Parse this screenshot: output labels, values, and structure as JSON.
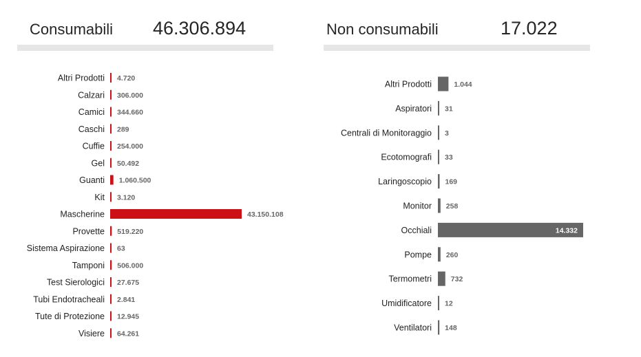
{
  "kpi_left": {
    "label": "Consumabili",
    "value": "46.306.894"
  },
  "kpi_right": {
    "label": "Non consumabili",
    "value": "17.022"
  },
  "colors": {
    "left_bar": "#cc1016",
    "right_bar": "#666666",
    "underline": "#e6e6e6"
  },
  "chart_data": [
    {
      "type": "bar",
      "orientation": "horizontal",
      "categories": [
        "Altri Prodotti",
        "Calzari",
        "Camici",
        "Caschi",
        "Cuffie",
        "Gel",
        "Guanti",
        "Kit",
        "Mascherine",
        "Provette",
        "Sistema Aspirazione",
        "Tamponi",
        "Test Sierologici",
        "Tubi Endotracheali",
        "Tute di Protezione",
        "Visiere"
      ],
      "values": [
        4720,
        306000,
        344660,
        289,
        254000,
        50492,
        1060500,
        3120,
        43150108,
        519220,
        63,
        506000,
        27675,
        2841,
        12945,
        64261
      ],
      "value_labels": [
        "4.720",
        "306.000",
        "344.660",
        "289",
        "254.000",
        "50.492",
        "1.060.500",
        "3.120",
        "43.150.108",
        "519.220",
        "63",
        "506.000",
        "27.675",
        "2.841",
        "12.945",
        "64.261"
      ],
      "color": "#cc1016",
      "xlim": [
        0,
        43150108
      ]
    },
    {
      "type": "bar",
      "orientation": "horizontal",
      "categories": [
        "Altri Prodotti",
        "Aspiratori",
        "Centrali di Monitoraggio",
        "Ecotomografi",
        "Laringoscopio",
        "Monitor",
        "Occhiali",
        "Pompe",
        "Termometri",
        "Umidificatore",
        "Ventilatori"
      ],
      "values": [
        1044,
        31,
        3,
        33,
        169,
        258,
        14332,
        260,
        732,
        12,
        148
      ],
      "value_labels": [
        "1.044",
        "31",
        "3",
        "33",
        "169",
        "258",
        "14.332",
        "260",
        "732",
        "12",
        "148"
      ],
      "color": "#666666",
      "xlim": [
        0,
        14332
      ]
    }
  ]
}
